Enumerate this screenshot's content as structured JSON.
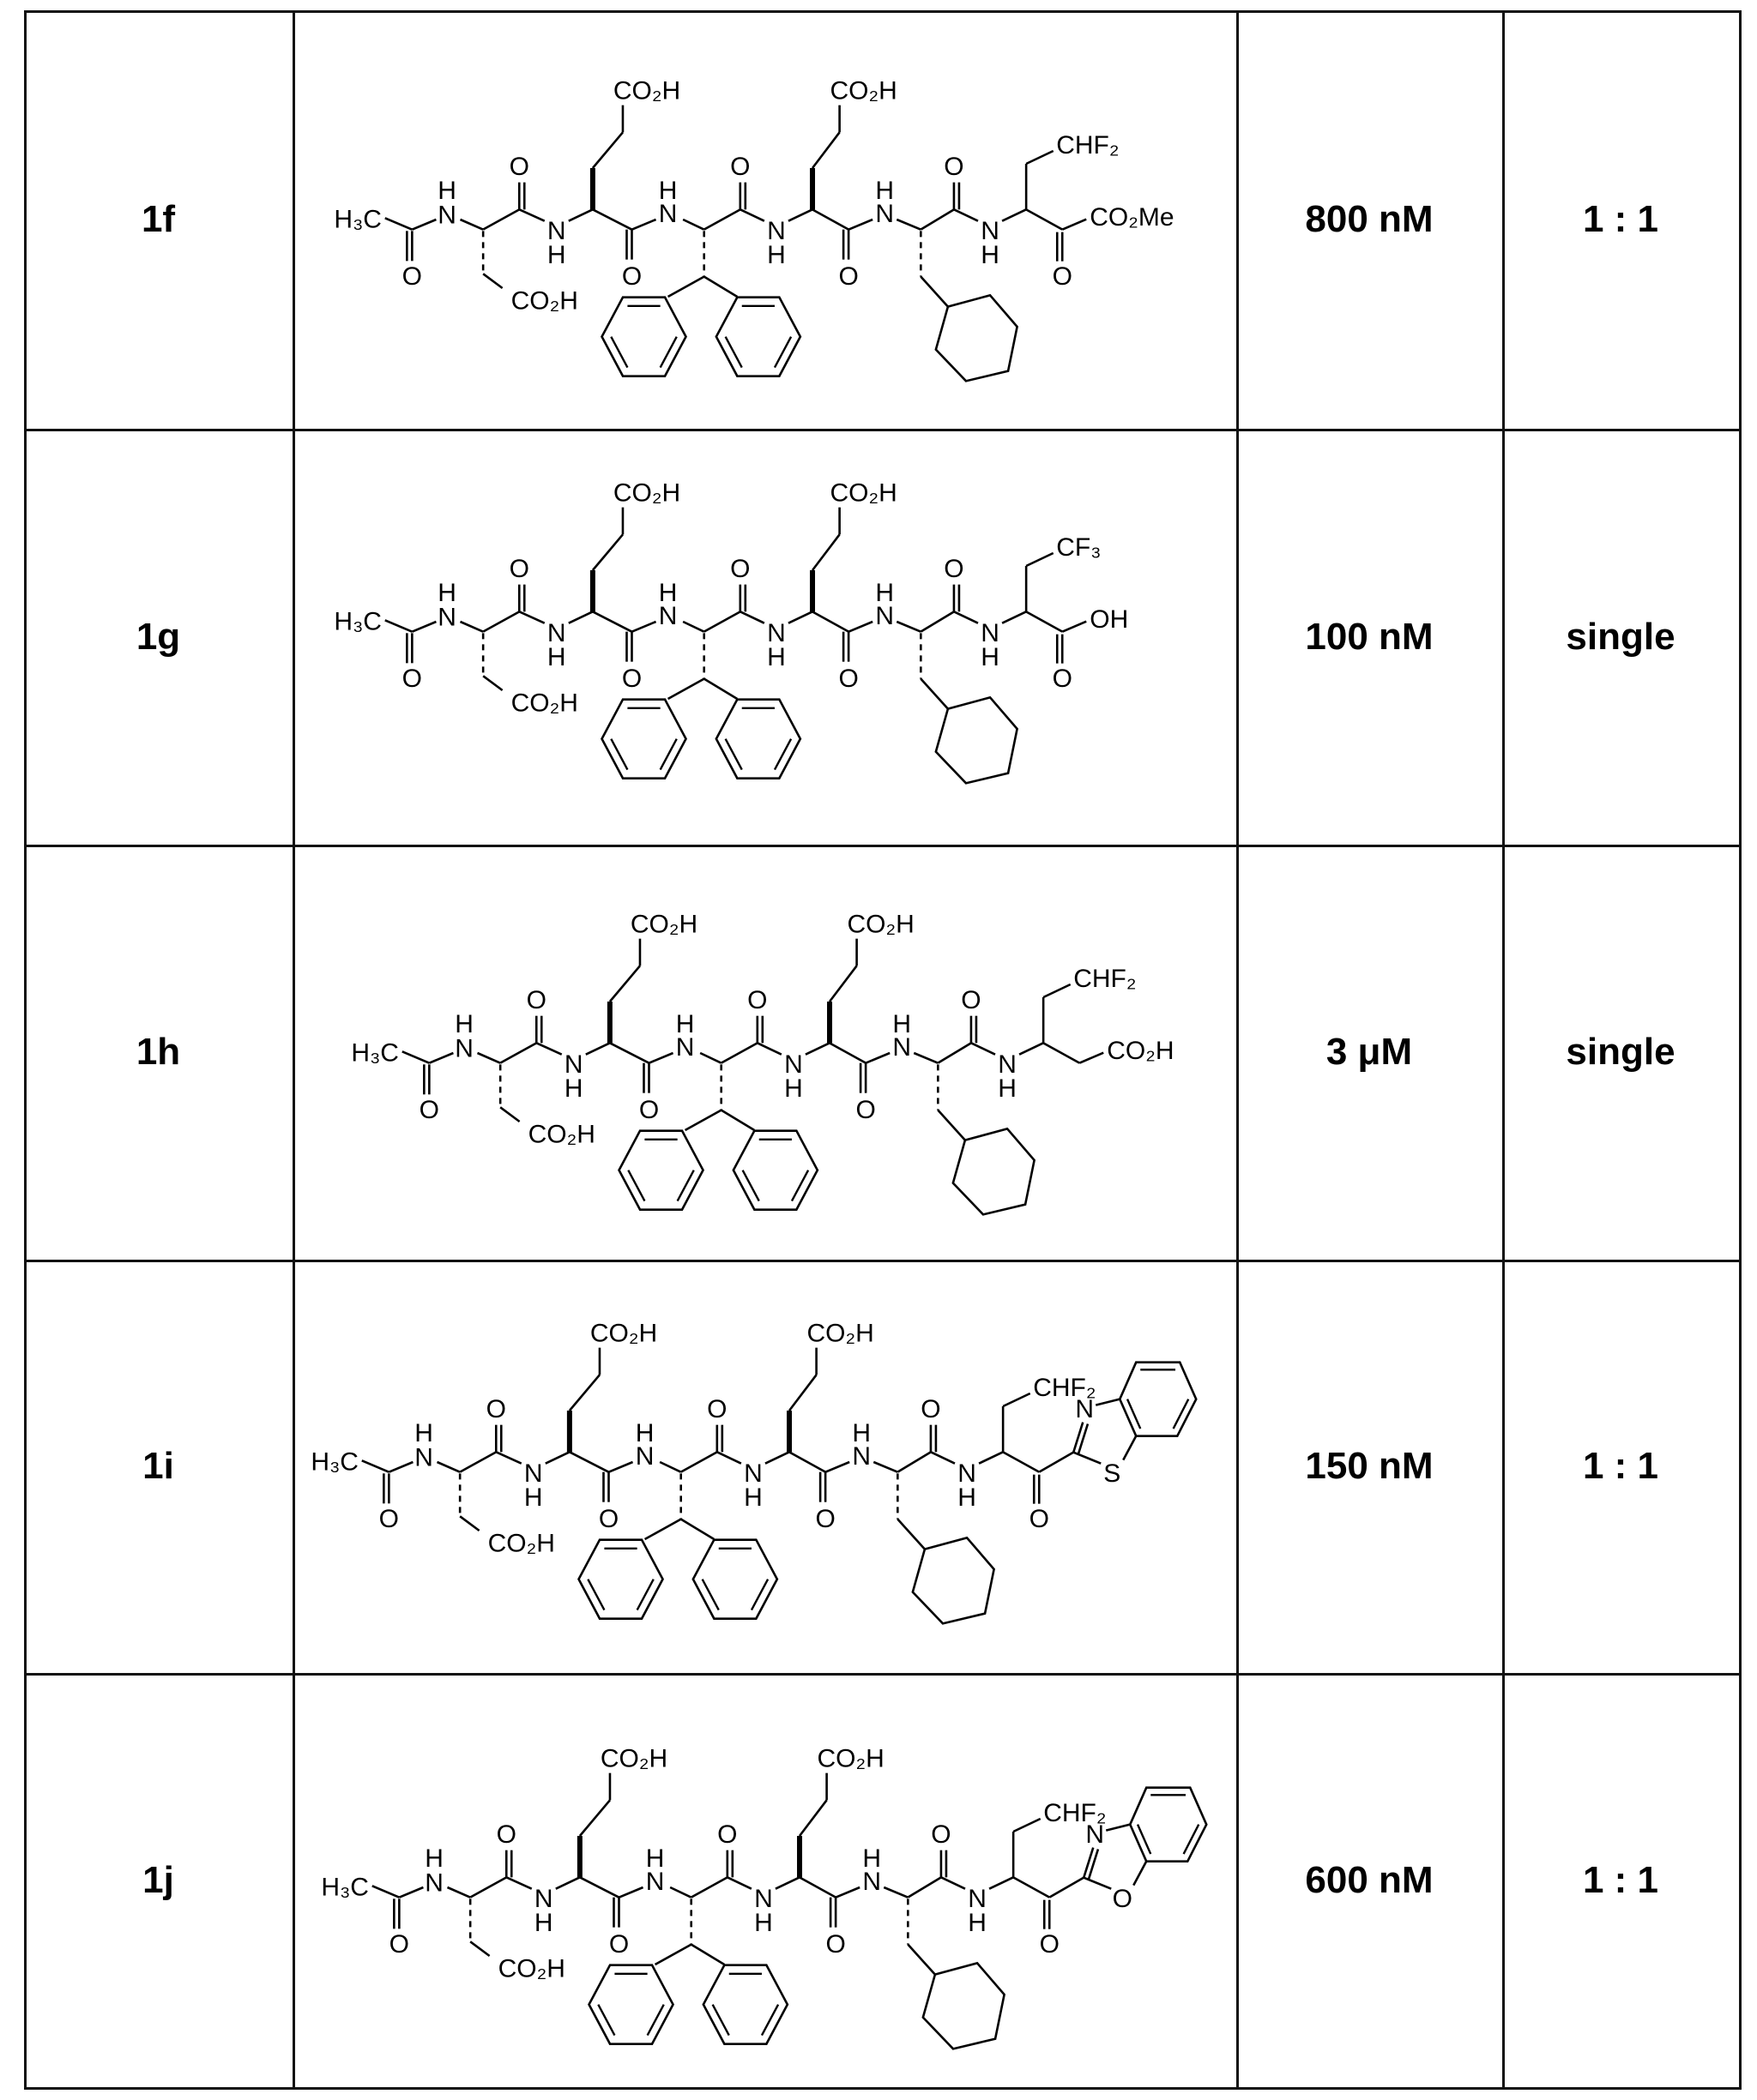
{
  "backbone_atoms": {
    "oxygen": "O",
    "nitrogen": "N",
    "hydrogen": "H",
    "n_cap": "H₃C",
    "acid_side_chain": "CO₂H"
  },
  "table": {
    "rows": [
      {
        "compound": "1f",
        "potency": "800 nM",
        "ratio": "1 : 1",
        "structure": {
          "c_terminal_side_chain": "CHF₂",
          "c_terminal_group": "CO₂Me",
          "terminal_type": "ketoester"
        }
      },
      {
        "compound": "1g",
        "potency": "100 nM",
        "ratio": "single",
        "structure": {
          "c_terminal_side_chain": "CF₃",
          "c_terminal_group": "OH",
          "terminal_type": "acid"
        }
      },
      {
        "compound": "1h",
        "potency": "3 μM",
        "ratio": "single",
        "structure": {
          "c_terminal_side_chain": "CHF₂",
          "c_terminal_group": "CO₂H",
          "terminal_type": "beta-acid"
        }
      },
      {
        "compound": "1i",
        "potency": "150 nM",
        "ratio": "1 : 1",
        "structure": {
          "c_terminal_side_chain": "CHF₂",
          "heteroatom_1": "N",
          "heteroatom_2": "S",
          "terminal_type": "ketobenzothiazole"
        }
      },
      {
        "compound": "1j",
        "potency": "600 nM",
        "ratio": "1 : 1",
        "structure": {
          "c_terminal_side_chain": "CHF₂",
          "heteroatom_1": "N",
          "heteroatom_2": "O",
          "terminal_type": "ketobenzoxazole"
        }
      }
    ]
  }
}
